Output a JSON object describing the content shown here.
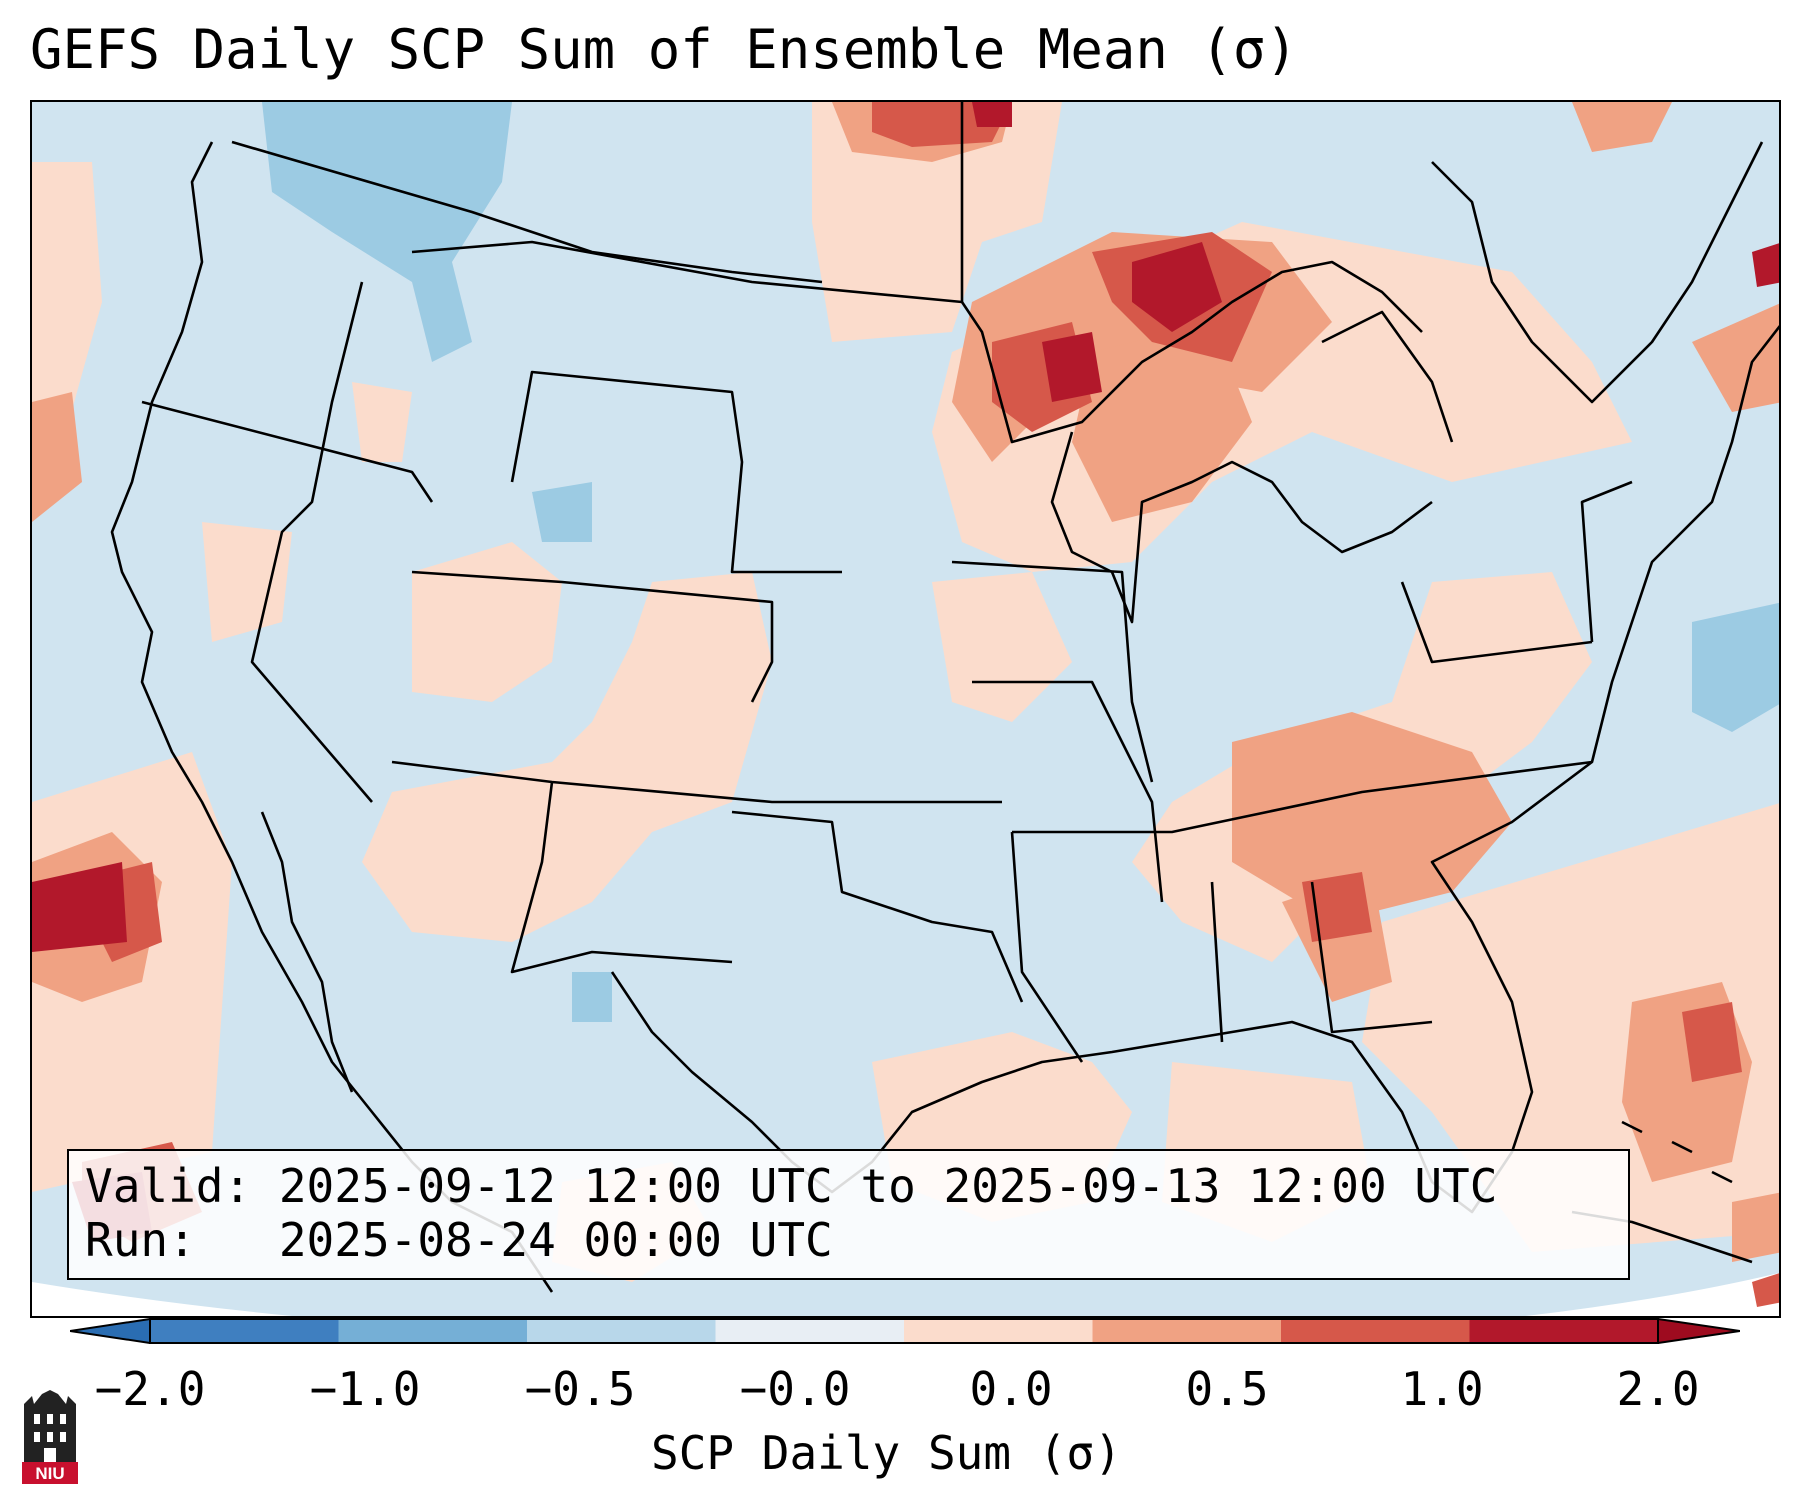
{
  "title": "GEFS Daily SCP Sum of Ensemble Mean (σ)",
  "info": {
    "valid": "Valid: 2025-09-12 12:00 UTC to 2025-09-13 12:00 UTC",
    "run": "Run:   2025-08-24 00:00 UTC"
  },
  "colorbar": {
    "label": "SCP Daily Sum (σ)",
    "ticks": [
      "−2.0",
      "−1.0",
      "−0.5",
      "−0.0",
      "0.0",
      "0.5",
      "1.0",
      "2.0"
    ],
    "colors": [
      "#3f7fc0",
      "#75afd6",
      "#b8d7ea",
      "#e8eef4",
      "#fbdccc",
      "#f0a283",
      "#d6584a",
      "#b2182b"
    ]
  },
  "map": {
    "region": "Contiguous United States, northern Mexico, Gulf of Mexico, Caribbean",
    "background_color": "#d0e4f0",
    "anomaly_colors": {
      "light_pos": "#fbdccc",
      "mid_pos": "#f0a283",
      "high_pos": "#d6584a",
      "max_pos": "#b2182b",
      "light_neg": "#9ccbe3"
    }
  },
  "logo": {
    "text": "NIU",
    "color": "#c8102e"
  }
}
